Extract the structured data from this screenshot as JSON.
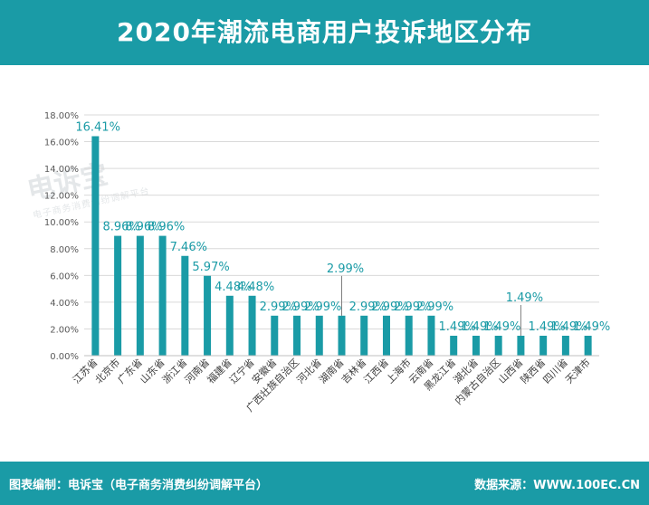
{
  "header": {
    "title": "2020年潮流电商用户投诉地区分布"
  },
  "watermark": {
    "brand": "电诉宝",
    "tagline": "电子商务消费纠纷调解平台"
  },
  "footer": {
    "credit": "图表编制：电诉宝（电子商务消费纠纷调解平台）",
    "source": "数据来源：WWW.100EC.CN"
  },
  "colors": {
    "bar": "#1a9ba6",
    "header": "#1a9ba6",
    "grid": "#d9d9d9",
    "label": "#1a9ba6"
  },
  "chart_data": {
    "type": "bar",
    "categories": [
      "江苏省",
      "北京市",
      "广东省",
      "山东省",
      "浙江省",
      "河南省",
      "福建省",
      "辽宁省",
      "安徽省",
      "广西壮族自治区",
      "河北省",
      "湖南省",
      "吉林省",
      "江西省",
      "上海市",
      "云南省",
      "黑龙江省",
      "湖北省",
      "内蒙古自治区",
      "山西省",
      "陕西省",
      "四川省",
      "天津市"
    ],
    "values": [
      16.41,
      8.96,
      8.96,
      8.96,
      7.46,
      5.97,
      4.48,
      4.48,
      2.99,
      2.99,
      2.99,
      2.99,
      2.99,
      2.99,
      2.99,
      2.99,
      1.49,
      1.49,
      1.49,
      1.49,
      1.49,
      1.49,
      1.49
    ],
    "data_labels": [
      "16.41%",
      "8.96%",
      "8.96%",
      "8.96%",
      "7.46%",
      "5.97%",
      "4.48%",
      "4.48%",
      "2.99%",
      "2.99%",
      "2.99%",
      "2.99%",
      "2.99%",
      "2.99%",
      "2.99%",
      "2.99%",
      "1.49%",
      "1.49%",
      "1.49%",
      "1.49%",
      "1.49%",
      "1.49%",
      "1.49%"
    ],
    "yticks": [
      "0.00%",
      "2.00%",
      "4.00%",
      "6.00%",
      "8.00%",
      "10.00%",
      "12.00%",
      "14.00%",
      "16.00%",
      "18.00%"
    ],
    "ylim": [
      0,
      18
    ],
    "grid": true,
    "title": "",
    "xlabel": "",
    "ylabel": ""
  }
}
